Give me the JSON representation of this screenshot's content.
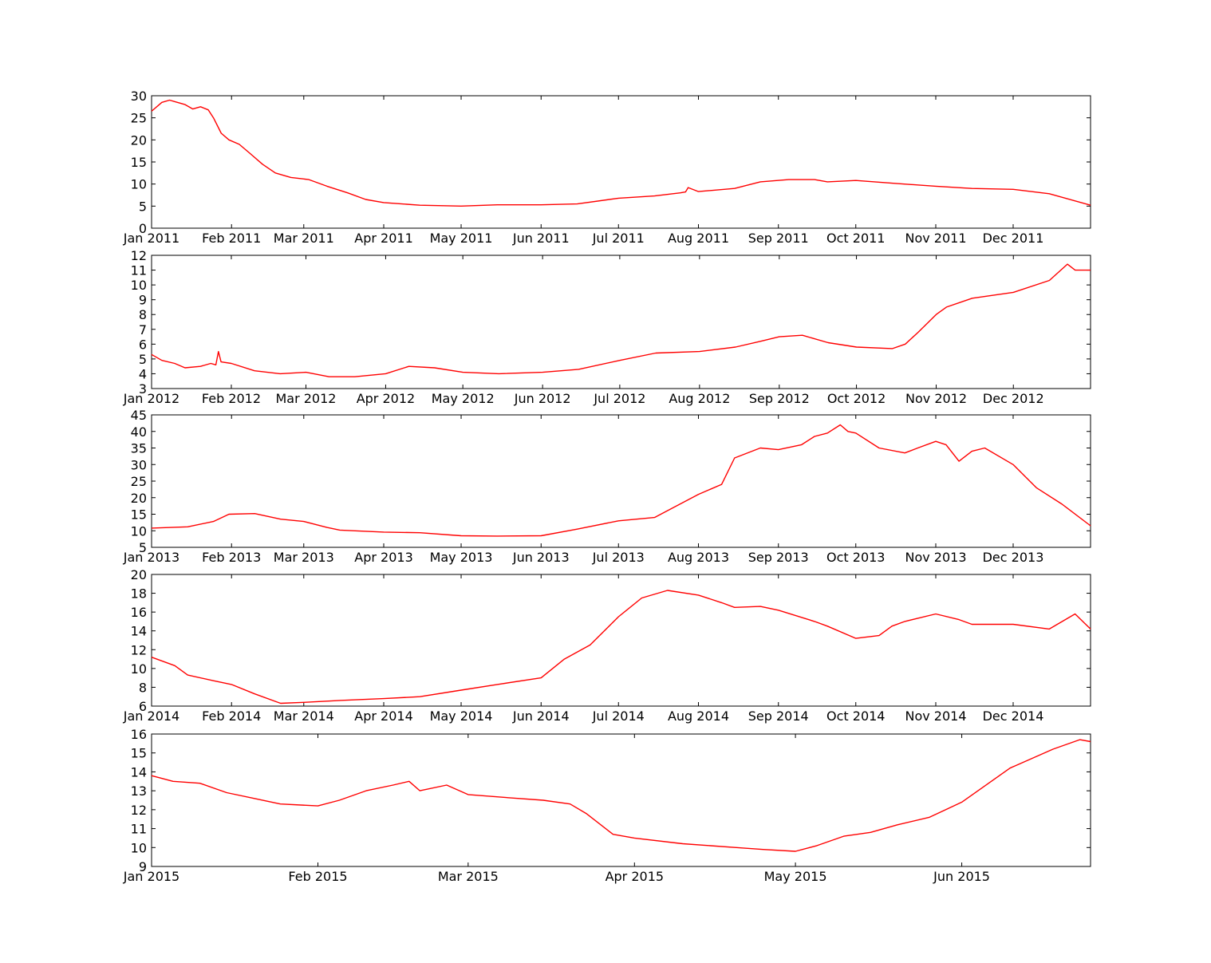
{
  "chart_data": [
    {
      "type": "line",
      "line_color": "#ff0000",
      "grid": false,
      "xlim": [
        "2011-01-01",
        "2011-12-31"
      ],
      "ylim": [
        0,
        30
      ],
      "x_ticks": [
        {
          "date": "2011-01-01",
          "label": "Jan 2011"
        },
        {
          "date": "2011-02-01",
          "label": "Feb 2011"
        },
        {
          "date": "2011-03-01",
          "label": "Mar 2011"
        },
        {
          "date": "2011-04-01",
          "label": "Apr 2011"
        },
        {
          "date": "2011-05-01",
          "label": "May 2011"
        },
        {
          "date": "2011-06-01",
          "label": "Jun 2011"
        },
        {
          "date": "2011-07-01",
          "label": "Jul 2011"
        },
        {
          "date": "2011-08-01",
          "label": "Aug 2011"
        },
        {
          "date": "2011-09-01",
          "label": "Sep 2011"
        },
        {
          "date": "2011-10-01",
          "label": "Oct 2011"
        },
        {
          "date": "2011-11-01",
          "label": "Nov 2011"
        },
        {
          "date": "2011-12-01",
          "label": "Dec 2011"
        }
      ],
      "y_ticks": [
        {
          "value": 0,
          "label": "0"
        },
        {
          "value": 5,
          "label": "5"
        },
        {
          "value": 10,
          "label": "10"
        },
        {
          "value": 15,
          "label": "15"
        },
        {
          "value": 20,
          "label": "20"
        },
        {
          "value": 25,
          "label": "25"
        },
        {
          "value": 30,
          "label": "30"
        }
      ],
      "series": [
        {
          "x": [
            "2011-01-01",
            "2011-01-05",
            "2011-01-08",
            "2011-01-11",
            "2011-01-14",
            "2011-01-17",
            "2011-01-20",
            "2011-01-23",
            "2011-01-25",
            "2011-01-28",
            "2011-01-31",
            "2011-02-04",
            "2011-02-08",
            "2011-02-13",
            "2011-02-18",
            "2011-02-24",
            "2011-03-03",
            "2011-03-10",
            "2011-03-18",
            "2011-03-25",
            "2011-04-01",
            "2011-04-15",
            "2011-05-01",
            "2011-05-15",
            "2011-06-01",
            "2011-06-15",
            "2011-07-01",
            "2011-07-15",
            "2011-07-25",
            "2011-07-27",
            "2011-07-28",
            "2011-08-01",
            "2011-08-15",
            "2011-08-25",
            "2011-09-05",
            "2011-09-15",
            "2011-09-20",
            "2011-10-01",
            "2011-10-15",
            "2011-11-01",
            "2011-11-15",
            "2011-12-01",
            "2011-12-15",
            "2011-12-31"
          ],
          "y": [
            26.5,
            28.5,
            29.0,
            28.5,
            28.0,
            27.0,
            27.5,
            26.8,
            25.0,
            21.5,
            20.0,
            19.0,
            17.0,
            14.5,
            12.5,
            11.5,
            11.0,
            9.5,
            8.0,
            6.5,
            5.8,
            5.2,
            5.0,
            5.3,
            5.3,
            5.5,
            6.8,
            7.3,
            8.0,
            8.2,
            9.2,
            8.3,
            9.0,
            10.5,
            11.0,
            11.0,
            10.5,
            10.8,
            10.2,
            9.5,
            9.0,
            8.8,
            7.8,
            5.2
          ]
        }
      ]
    },
    {
      "type": "line",
      "line_color": "#ff0000",
      "grid": false,
      "xlim": [
        "2012-01-01",
        "2012-12-31"
      ],
      "ylim": [
        3,
        12
      ],
      "x_ticks": [
        {
          "date": "2012-01-01",
          "label": "Jan 2012"
        },
        {
          "date": "2012-02-01",
          "label": "Feb 2012"
        },
        {
          "date": "2012-03-01",
          "label": "Mar 2012"
        },
        {
          "date": "2012-04-01",
          "label": "Apr 2012"
        },
        {
          "date": "2012-05-01",
          "label": "May 2012"
        },
        {
          "date": "2012-06-01",
          "label": "Jun 2012"
        },
        {
          "date": "2012-07-01",
          "label": "Jul 2012"
        },
        {
          "date": "2012-08-01",
          "label": "Aug 2012"
        },
        {
          "date": "2012-09-01",
          "label": "Sep 2012"
        },
        {
          "date": "2012-10-01",
          "label": "Oct 2012"
        },
        {
          "date": "2012-11-01",
          "label": "Nov 2012"
        },
        {
          "date": "2012-12-01",
          "label": "Dec 2012"
        }
      ],
      "y_ticks": [
        {
          "value": 3,
          "label": "3"
        },
        {
          "value": 4,
          "label": "4"
        },
        {
          "value": 5,
          "label": "5"
        },
        {
          "value": 6,
          "label": "6"
        },
        {
          "value": 7,
          "label": "7"
        },
        {
          "value": 8,
          "label": "8"
        },
        {
          "value": 9,
          "label": "9"
        },
        {
          "value": 10,
          "label": "10"
        },
        {
          "value": 11,
          "label": "11"
        },
        {
          "value": 12,
          "label": "12"
        }
      ],
      "series": [
        {
          "x": [
            "2012-01-01",
            "2012-01-05",
            "2012-01-10",
            "2012-01-14",
            "2012-01-20",
            "2012-01-24",
            "2012-01-26",
            "2012-01-27",
            "2012-01-28",
            "2012-02-01",
            "2012-02-10",
            "2012-02-20",
            "2012-03-01",
            "2012-03-10",
            "2012-03-20",
            "2012-04-01",
            "2012-04-10",
            "2012-04-20",
            "2012-05-01",
            "2012-05-15",
            "2012-06-01",
            "2012-06-15",
            "2012-07-01",
            "2012-07-15",
            "2012-08-01",
            "2012-08-15",
            "2012-08-25",
            "2012-09-01",
            "2012-09-10",
            "2012-09-20",
            "2012-10-01",
            "2012-10-15",
            "2012-10-20",
            "2012-10-25",
            "2012-11-01",
            "2012-11-05",
            "2012-11-15",
            "2012-12-01",
            "2012-12-15",
            "2012-12-22",
            "2012-12-25",
            "2012-12-31"
          ],
          "y": [
            5.3,
            4.9,
            4.7,
            4.4,
            4.5,
            4.7,
            4.6,
            5.5,
            4.8,
            4.7,
            4.2,
            4.0,
            4.1,
            3.8,
            3.8,
            4.0,
            4.5,
            4.4,
            4.1,
            4.0,
            4.1,
            4.3,
            4.9,
            5.4,
            5.5,
            5.8,
            6.2,
            6.5,
            6.6,
            6.1,
            5.8,
            5.7,
            6.0,
            6.8,
            8.0,
            8.5,
            9.1,
            9.5,
            10.3,
            11.4,
            11.0,
            11.0
          ]
        }
      ]
    },
    {
      "type": "line",
      "line_color": "#ff0000",
      "grid": false,
      "xlim": [
        "2013-01-01",
        "2013-12-31"
      ],
      "ylim": [
        5,
        45
      ],
      "x_ticks": [
        {
          "date": "2013-01-01",
          "label": "Jan 2013"
        },
        {
          "date": "2013-02-01",
          "label": "Feb 2013"
        },
        {
          "date": "2013-03-01",
          "label": "Mar 2013"
        },
        {
          "date": "2013-04-01",
          "label": "Apr 2013"
        },
        {
          "date": "2013-05-01",
          "label": "May 2013"
        },
        {
          "date": "2013-06-01",
          "label": "Jun 2013"
        },
        {
          "date": "2013-07-01",
          "label": "Jul 2013"
        },
        {
          "date": "2013-08-01",
          "label": "Aug 2013"
        },
        {
          "date": "2013-09-01",
          "label": "Sep 2013"
        },
        {
          "date": "2013-10-01",
          "label": "Oct 2013"
        },
        {
          "date": "2013-11-01",
          "label": "Nov 2013"
        },
        {
          "date": "2013-12-01",
          "label": "Dec 2013"
        }
      ],
      "y_ticks": [
        {
          "value": 5,
          "label": "5"
        },
        {
          "value": 10,
          "label": "10"
        },
        {
          "value": 15,
          "label": "15"
        },
        {
          "value": 20,
          "label": "20"
        },
        {
          "value": 25,
          "label": "25"
        },
        {
          "value": 30,
          "label": "30"
        },
        {
          "value": 35,
          "label": "35"
        },
        {
          "value": 40,
          "label": "40"
        },
        {
          "value": 45,
          "label": "45"
        }
      ],
      "series": [
        {
          "x": [
            "2013-01-01",
            "2013-01-15",
            "2013-01-25",
            "2013-01-31",
            "2013-02-10",
            "2013-02-20",
            "2013-03-01",
            "2013-03-10",
            "2013-03-15",
            "2013-04-01",
            "2013-04-15",
            "2013-05-01",
            "2013-05-15",
            "2013-06-01",
            "2013-06-15",
            "2013-07-01",
            "2013-07-15",
            "2013-08-01",
            "2013-08-10",
            "2013-08-15",
            "2013-08-25",
            "2013-09-01",
            "2013-09-10",
            "2013-09-15",
            "2013-09-20",
            "2013-09-25",
            "2013-09-28",
            "2013-10-01",
            "2013-10-10",
            "2013-10-20",
            "2013-10-25",
            "2013-11-01",
            "2013-11-05",
            "2013-11-10",
            "2013-11-15",
            "2013-11-20",
            "2013-12-01",
            "2013-12-10",
            "2013-12-20",
            "2013-12-31"
          ],
          "y": [
            10.8,
            11.2,
            12.8,
            15.0,
            15.2,
            13.5,
            12.8,
            11.0,
            10.2,
            9.6,
            9.4,
            8.5,
            8.4,
            8.5,
            10.5,
            13.0,
            14.0,
            21.0,
            24.0,
            32.0,
            35.0,
            34.5,
            36.0,
            38.5,
            39.5,
            42.0,
            40.0,
            39.5,
            35.0,
            33.5,
            35.0,
            37.0,
            36.0,
            31.0,
            34.0,
            35.0,
            30.0,
            23.0,
            18.0,
            11.5
          ]
        }
      ]
    },
    {
      "type": "line",
      "line_color": "#ff0000",
      "grid": false,
      "xlim": [
        "2014-01-01",
        "2014-12-31"
      ],
      "ylim": [
        6,
        20
      ],
      "x_ticks": [
        {
          "date": "2014-01-01",
          "label": "Jan 2014"
        },
        {
          "date": "2014-02-01",
          "label": "Feb 2014"
        },
        {
          "date": "2014-03-01",
          "label": "Mar 2014"
        },
        {
          "date": "2014-04-01",
          "label": "Apr 2014"
        },
        {
          "date": "2014-05-01",
          "label": "May 2014"
        },
        {
          "date": "2014-06-01",
          "label": "Jun 2014"
        },
        {
          "date": "2014-07-01",
          "label": "Jul 2014"
        },
        {
          "date": "2014-08-01",
          "label": "Aug 2014"
        },
        {
          "date": "2014-09-01",
          "label": "Sep 2014"
        },
        {
          "date": "2014-10-01",
          "label": "Oct 2014"
        },
        {
          "date": "2014-11-01",
          "label": "Nov 2014"
        },
        {
          "date": "2014-12-01",
          "label": "Dec 2014"
        }
      ],
      "y_ticks": [
        {
          "value": 6,
          "label": "6"
        },
        {
          "value": 8,
          "label": "8"
        },
        {
          "value": 10,
          "label": "10"
        },
        {
          "value": 12,
          "label": "12"
        },
        {
          "value": 14,
          "label": "14"
        },
        {
          "value": 16,
          "label": "16"
        },
        {
          "value": 18,
          "label": "18"
        },
        {
          "value": 20,
          "label": "20"
        }
      ],
      "series": [
        {
          "x": [
            "2014-01-01",
            "2014-01-10",
            "2014-01-15",
            "2014-01-25",
            "2014-02-01",
            "2014-02-10",
            "2014-02-20",
            "2014-03-01",
            "2014-03-15",
            "2014-04-01",
            "2014-04-15",
            "2014-05-01",
            "2014-05-15",
            "2014-06-01",
            "2014-06-10",
            "2014-06-20",
            "2014-07-01",
            "2014-07-10",
            "2014-07-20",
            "2014-08-01",
            "2014-08-10",
            "2014-08-15",
            "2014-08-25",
            "2014-09-01",
            "2014-09-15",
            "2014-09-20",
            "2014-10-01",
            "2014-10-10",
            "2014-10-15",
            "2014-10-20",
            "2014-11-01",
            "2014-11-10",
            "2014-11-15",
            "2014-12-01",
            "2014-12-15",
            "2014-12-25",
            "2014-12-31"
          ],
          "y": [
            11.2,
            10.3,
            9.3,
            8.7,
            8.3,
            7.3,
            6.3,
            6.4,
            6.6,
            6.8,
            7.0,
            7.7,
            8.3,
            9.0,
            11.0,
            12.5,
            15.5,
            17.5,
            18.3,
            17.8,
            17.0,
            16.5,
            16.6,
            16.2,
            15.0,
            14.5,
            13.2,
            13.5,
            14.5,
            15.0,
            15.8,
            15.2,
            14.7,
            14.7,
            14.2,
            15.8,
            14.2
          ]
        }
      ]
    },
    {
      "type": "line",
      "line_color": "#ff0000",
      "grid": false,
      "xlim": [
        "2015-01-01",
        "2015-06-25"
      ],
      "ylim": [
        9,
        16
      ],
      "x_ticks": [
        {
          "date": "2015-01-01",
          "label": "Jan 2015"
        },
        {
          "date": "2015-02-01",
          "label": "Feb 2015"
        },
        {
          "date": "2015-03-01",
          "label": "Mar 2015"
        },
        {
          "date": "2015-04-01",
          "label": "Apr 2015"
        },
        {
          "date": "2015-05-01",
          "label": "May 2015"
        },
        {
          "date": "2015-06-01",
          "label": "Jun 2015"
        }
      ],
      "y_ticks": [
        {
          "value": 9,
          "label": "9"
        },
        {
          "value": 10,
          "label": "10"
        },
        {
          "value": 11,
          "label": "11"
        },
        {
          "value": 12,
          "label": "12"
        },
        {
          "value": 13,
          "label": "13"
        },
        {
          "value": 14,
          "label": "14"
        },
        {
          "value": 15,
          "label": "15"
        },
        {
          "value": 16,
          "label": "16"
        }
      ],
      "series": [
        {
          "x": [
            "2015-01-01",
            "2015-01-05",
            "2015-01-10",
            "2015-01-15",
            "2015-01-20",
            "2015-01-25",
            "2015-02-01",
            "2015-02-05",
            "2015-02-10",
            "2015-02-15",
            "2015-02-18",
            "2015-02-20",
            "2015-02-25",
            "2015-03-01",
            "2015-03-10",
            "2015-03-15",
            "2015-03-20",
            "2015-03-23",
            "2015-03-28",
            "2015-04-01",
            "2015-04-10",
            "2015-04-20",
            "2015-04-25",
            "2015-05-01",
            "2015-05-05",
            "2015-05-10",
            "2015-05-15",
            "2015-05-20",
            "2015-05-26",
            "2015-06-01",
            "2015-06-05",
            "2015-06-10",
            "2015-06-18",
            "2015-06-23",
            "2015-06-25"
          ],
          "y": [
            13.8,
            13.5,
            13.4,
            12.9,
            12.6,
            12.3,
            12.2,
            12.5,
            13.0,
            13.3,
            13.5,
            13.0,
            13.3,
            12.8,
            12.6,
            12.5,
            12.3,
            11.8,
            10.7,
            10.5,
            10.2,
            10.0,
            9.9,
            9.8,
            10.1,
            10.6,
            10.8,
            11.2,
            11.6,
            12.4,
            13.2,
            14.2,
            15.2,
            15.7,
            15.6
          ]
        }
      ]
    }
  ]
}
